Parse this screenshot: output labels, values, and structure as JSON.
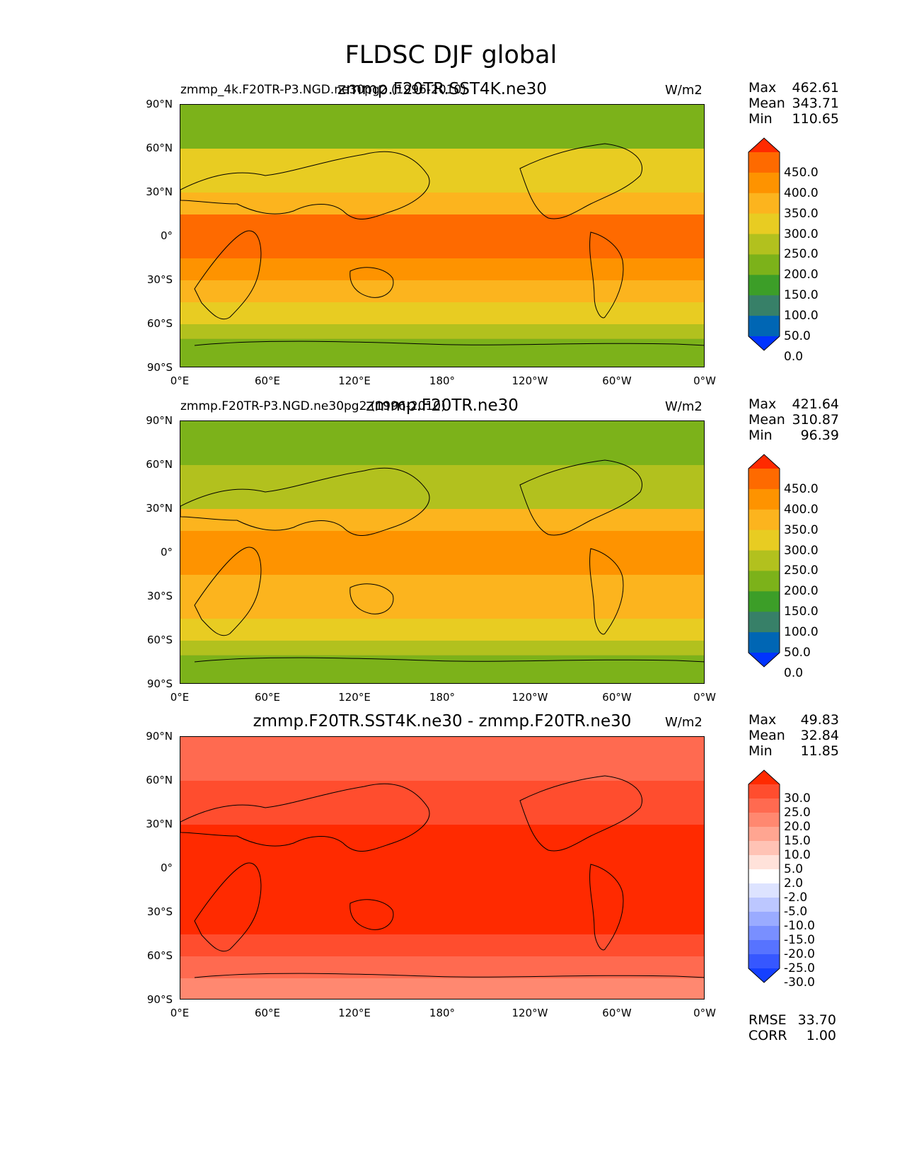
{
  "title": "FLDSC DJF global",
  "axes": {
    "y_ticks": [
      "90°N",
      "60°N",
      "30°N",
      "0°",
      "30°S",
      "60°S",
      "90°S"
    ],
    "x_ticks": [
      "0°E",
      "60°E",
      "120°E",
      "180°",
      "120°W",
      "60°W",
      "0°W"
    ]
  },
  "panels": [
    {
      "left_title": "zmmp_4k.F20TR-P3.NGD.ne30pg2 (1996-2010)",
      "center_title": "zmmp.F20TR.SST4K.ne30",
      "units": "W/m2",
      "stats": {
        "max_label": "Max",
        "max": "462.61",
        "mean_label": "Mean",
        "mean": "343.71",
        "min_label": "Min",
        "min": "110.65"
      },
      "colorbar": {
        "labels": [
          "450.0",
          "400.0",
          "350.0",
          "300.0",
          "250.0",
          "200.0",
          "150.0",
          "100.0",
          "50.0",
          "0.0"
        ],
        "colors": [
          "#ff2a00",
          "#fe6a00",
          "#fe9300",
          "#fcb41e",
          "#e8cc22",
          "#b2c11e",
          "#7cb21a",
          "#3c9e28",
          "#378068",
          "#0066b4",
          "#0033ff"
        ]
      }
    },
    {
      "left_title": "zmmp.F20TR-P3.NGD.ne30pg2 (1996-2010)",
      "center_title": "zmmp.F20TR.ne30",
      "units": "W/m2",
      "stats": {
        "max_label": "Max",
        "max": "421.64",
        "mean_label": "Mean",
        "mean": "310.87",
        "min_label": "Min",
        "min": "96.39"
      },
      "colorbar": {
        "labels": [
          "450.0",
          "400.0",
          "350.0",
          "300.0",
          "250.0",
          "200.0",
          "150.0",
          "100.0",
          "50.0",
          "0.0"
        ],
        "colors": [
          "#ff2a00",
          "#fe6a00",
          "#fe9300",
          "#fcb41e",
          "#e8cc22",
          "#b2c11e",
          "#7cb21a",
          "#3c9e28",
          "#378068",
          "#0066b4",
          "#0033ff"
        ]
      }
    },
    {
      "left_title": "",
      "center_title": "zmmp.F20TR.SST4K.ne30 - zmmp.F20TR.ne30",
      "units": "W/m2",
      "stats": {
        "max_label": "Max",
        "max": "49.83",
        "mean_label": "Mean",
        "mean": "32.84",
        "min_label": "Min",
        "min": "11.85"
      },
      "colorbar": {
        "labels": [
          "30.0",
          "25.0",
          "20.0",
          "15.0",
          "10.0",
          "5.0",
          "2.0",
          "-2.0",
          "-5.0",
          "-10.0",
          "-15.0",
          "-20.0",
          "-25.0",
          "-30.0"
        ],
        "colors": [
          "#ff2a00",
          "#ff4d2e",
          "#ff6a50",
          "#ff8870",
          "#ffa591",
          "#ffc3b5",
          "#ffe2da",
          "#ffffff",
          "#dde3ff",
          "#bcc7ff",
          "#9aabff",
          "#798fff",
          "#5773ff",
          "#3657ff",
          "#1540ff"
        ]
      },
      "rmse_label": "RMSE",
      "rmse": "33.70",
      "corr_label": "CORR",
      "corr": "1.00"
    }
  ],
  "chart_data": [
    {
      "type": "heatmap",
      "title": "zmmp.F20TR.SST4K.ne30",
      "subtitle": "zmmp_4k.F20TR-P3.NGD.ne30pg2 (1996-2010)",
      "variable": "FLDSC",
      "season": "DJF",
      "units": "W/m2",
      "levels": [
        0,
        50,
        100,
        150,
        200,
        250,
        300,
        350,
        400,
        450
      ],
      "xlim": [
        0,
        360
      ],
      "ylim": [
        -90,
        90
      ],
      "max": 462.61,
      "mean": 343.71,
      "min": 110.65,
      "lat_bands": [
        {
          "lat": [
            60,
            90
          ],
          "value": 175
        },
        {
          "lat": [
            30,
            60
          ],
          "value": 260
        },
        {
          "lat": [
            15,
            30
          ],
          "value": 340
        },
        {
          "lat": [
            -15,
            15
          ],
          "value": 420
        },
        {
          "lat": [
            -30,
            -15
          ],
          "value": 375
        },
        {
          "lat": [
            -45,
            -30
          ],
          "value": 330
        },
        {
          "lat": [
            -60,
            -45
          ],
          "value": 275
        },
        {
          "lat": [
            -70,
            -60
          ],
          "value": 235
        },
        {
          "lat": [
            -90,
            -70
          ],
          "value": 170
        }
      ]
    },
    {
      "type": "heatmap",
      "title": "zmmp.F20TR.ne30",
      "subtitle": "zmmp.F20TR-P3.NGD.ne30pg2 (1996-2010)",
      "variable": "FLDSC",
      "season": "DJF",
      "units": "W/m2",
      "levels": [
        0,
        50,
        100,
        150,
        200,
        250,
        300,
        350,
        400,
        450
      ],
      "xlim": [
        0,
        360
      ],
      "ylim": [
        -90,
        90
      ],
      "max": 421.64,
      "mean": 310.87,
      "min": 96.39,
      "lat_bands": [
        {
          "lat": [
            60,
            90
          ],
          "value": 155
        },
        {
          "lat": [
            30,
            60
          ],
          "value": 215
        },
        {
          "lat": [
            15,
            30
          ],
          "value": 310
        },
        {
          "lat": [
            -15,
            15
          ],
          "value": 385
        },
        {
          "lat": [
            -30,
            -15
          ],
          "value": 345
        },
        {
          "lat": [
            -45,
            -30
          ],
          "value": 305
        },
        {
          "lat": [
            -60,
            -45
          ],
          "value": 255
        },
        {
          "lat": [
            -70,
            -60
          ],
          "value": 215
        },
        {
          "lat": [
            -90,
            -70
          ],
          "value": 160
        }
      ]
    },
    {
      "type": "heatmap",
      "title": "zmmp.F20TR.SST4K.ne30 - zmmp.F20TR.ne30",
      "variable": "FLDSC",
      "season": "DJF",
      "units": "W/m2",
      "levels": [
        -30,
        -25,
        -20,
        -15,
        -10,
        -5,
        -2,
        2,
        5,
        10,
        15,
        20,
        25,
        30
      ],
      "xlim": [
        0,
        360
      ],
      "ylim": [
        -90,
        90
      ],
      "max": 49.83,
      "mean": 32.84,
      "min": 11.85,
      "rmse": 33.7,
      "corr": 1.0,
      "lat_bands": [
        {
          "lat": [
            60,
            90
          ],
          "value": 22
        },
        {
          "lat": [
            30,
            60
          ],
          "value": 28
        },
        {
          "lat": [
            -45,
            30
          ],
          "value": 36
        },
        {
          "lat": [
            -60,
            -45
          ],
          "value": 27
        },
        {
          "lat": [
            -75,
            -60
          ],
          "value": 22
        },
        {
          "lat": [
            -90,
            -75
          ],
          "value": 17
        }
      ]
    }
  ]
}
